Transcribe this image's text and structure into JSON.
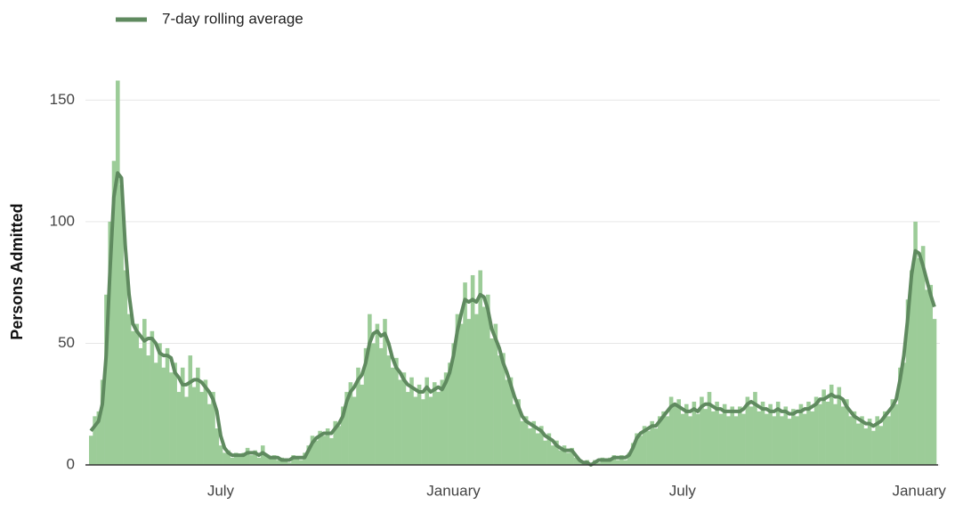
{
  "chart_data": {
    "type": "bar",
    "y_label": "Persons Admitted",
    "ylim": [
      0,
      160
    ],
    "yticks": [
      0,
      50,
      100,
      150
    ],
    "grid": true,
    "categories": [
      null,
      null,
      null,
      null,
      null,
      null,
      null,
      null,
      null,
      null,
      null,
      null,
      null,
      null,
      null,
      null,
      null,
      null,
      null,
      null,
      null,
      null,
      null,
      null,
      null,
      null,
      null,
      null,
      null,
      null,
      null,
      null,
      null,
      null,
      "July",
      null,
      null,
      null,
      null,
      null,
      null,
      null,
      null,
      null,
      null,
      null,
      null,
      null,
      null,
      null,
      null,
      null,
      null,
      null,
      null,
      null,
      null,
      null,
      null,
      null,
      null,
      null,
      null,
      null,
      null,
      null,
      null,
      null,
      null,
      null,
      null,
      null,
      null,
      null,
      null,
      null,
      null,
      null,
      null,
      null,
      null,
      null,
      null,
      null,
      null,
      null,
      null,
      null,
      null,
      null,
      null,
      null,
      null,
      null,
      null,
      "January",
      null,
      null,
      null,
      null,
      null,
      null,
      null,
      null,
      null,
      null,
      null,
      null,
      null,
      null,
      null,
      null,
      null,
      null,
      null,
      null,
      null,
      null,
      null,
      null,
      null,
      null,
      null,
      null,
      null,
      null,
      null,
      null,
      null,
      null,
      null,
      null,
      null,
      null,
      null,
      null,
      null,
      null,
      null,
      null,
      null,
      null,
      null,
      null,
      null,
      null,
      null,
      null,
      null,
      null,
      null,
      null,
      null,
      null,
      null,
      "July",
      null,
      null,
      null,
      null,
      null,
      null,
      null,
      null,
      null,
      null,
      null,
      null,
      null,
      null,
      null,
      null,
      null,
      null,
      null,
      null,
      null,
      null,
      null,
      null,
      null,
      null,
      null,
      null,
      null,
      null,
      null,
      null,
      null,
      null,
      null,
      null,
      null,
      null,
      null,
      null,
      null,
      null,
      null,
      null,
      null,
      null,
      null,
      null,
      null,
      null,
      null,
      null,
      null,
      null,
      null,
      null,
      null,
      null,
      null,
      null,
      null,
      "January",
      null,
      null,
      null,
      null
    ],
    "series": [
      {
        "type": "bar",
        "color": "#9ccc98",
        "values": [
          12,
          20,
          22,
          35,
          70,
          100,
          125,
          158,
          115,
          80,
          62,
          55,
          58,
          48,
          60,
          45,
          55,
          42,
          50,
          40,
          48,
          38,
          42,
          30,
          40,
          28,
          45,
          32,
          40,
          30,
          35,
          25,
          30,
          15,
          8,
          5,
          6,
          3,
          5,
          4,
          5,
          7,
          4,
          6,
          3,
          8,
          4,
          3,
          4,
          2,
          3,
          2,
          1,
          4,
          3,
          2,
          5,
          8,
          12,
          10,
          14,
          12,
          15,
          11,
          18,
          16,
          24,
          30,
          34,
          28,
          40,
          33,
          48,
          62,
          50,
          58,
          48,
          60,
          45,
          40,
          44,
          35,
          38,
          30,
          36,
          28,
          33,
          27,
          36,
          28,
          34,
          30,
          35,
          38,
          42,
          50,
          62,
          58,
          75,
          60,
          78,
          62,
          80,
          65,
          70,
          52,
          58,
          45,
          46,
          35,
          36,
          25,
          27,
          18,
          20,
          15,
          18,
          13,
          16,
          10,
          13,
          8,
          10,
          6,
          8,
          5,
          7,
          3,
          2,
          1,
          2,
          0,
          2,
          1,
          3,
          2,
          3,
          4,
          2,
          4,
          2,
          5,
          9,
          13,
          12,
          16,
          14,
          18,
          15,
          20,
          22,
          20,
          28,
          24,
          27,
          21,
          25,
          20,
          26,
          21,
          28,
          23,
          30,
          22,
          26,
          21,
          25,
          20,
          24,
          20,
          24,
          21,
          28,
          24,
          30,
          22,
          26,
          21,
          25,
          20,
          26,
          20,
          24,
          19,
          23,
          20,
          25,
          21,
          26,
          22,
          28,
          25,
          31,
          26,
          33,
          25,
          32,
          24,
          27,
          20,
          22,
          17,
          20,
          15,
          19,
          14,
          20,
          16,
          22,
          20,
          27,
          25,
          40,
          42,
          68,
          80,
          100,
          85,
          90,
          72,
          74,
          60
        ]
      },
      {
        "type": "line",
        "name": "7-day rolling average",
        "color": "#5f8a5f",
        "values": [
          14,
          16,
          18,
          25,
          45,
          80,
          110,
          120,
          118,
          90,
          70,
          58,
          55,
          53,
          51,
          52,
          52,
          50,
          46,
          45,
          45,
          44,
          38,
          36,
          33,
          33,
          34,
          35,
          35,
          34,
          32,
          30,
          27,
          22,
          12,
          7,
          5,
          4,
          4,
          4,
          4,
          5,
          5,
          5,
          4,
          5,
          4,
          3,
          3,
          3,
          2,
          2,
          2,
          3,
          3,
          3,
          3,
          6,
          9,
          11,
          12,
          13,
          13,
          13,
          15,
          17,
          20,
          26,
          30,
          32,
          35,
          37,
          42,
          50,
          54,
          55,
          53,
          54,
          50,
          44,
          40,
          38,
          35,
          33,
          32,
          31,
          30,
          30,
          32,
          30,
          31,
          32,
          31,
          34,
          38,
          45,
          55,
          62,
          68,
          67,
          68,
          67,
          70,
          69,
          64,
          56,
          52,
          48,
          42,
          38,
          33,
          28,
          24,
          20,
          18,
          17,
          16,
          15,
          14,
          12,
          11,
          10,
          8,
          7,
          6,
          6,
          6,
          4,
          2,
          1,
          1,
          0,
          1,
          2,
          2,
          2,
          2,
          3,
          3,
          3,
          3,
          4,
          7,
          11,
          13,
          14,
          15,
          16,
          16,
          18,
          20,
          22,
          24,
          25,
          24,
          23,
          22,
          22,
          23,
          22,
          24,
          25,
          25,
          24,
          23,
          23,
          22,
          22,
          22,
          22,
          22,
          23,
          25,
          26,
          25,
          24,
          23,
          23,
          22,
          22,
          23,
          22,
          22,
          21,
          21,
          22,
          22,
          23,
          23,
          24,
          25,
          27,
          27,
          28,
          29,
          28,
          28,
          27,
          24,
          22,
          20,
          19,
          18,
          17,
          17,
          16,
          17,
          18,
          20,
          22,
          24,
          27,
          35,
          45,
          60,
          78,
          88,
          87,
          82,
          76,
          70,
          65
        ]
      }
    ]
  }
}
